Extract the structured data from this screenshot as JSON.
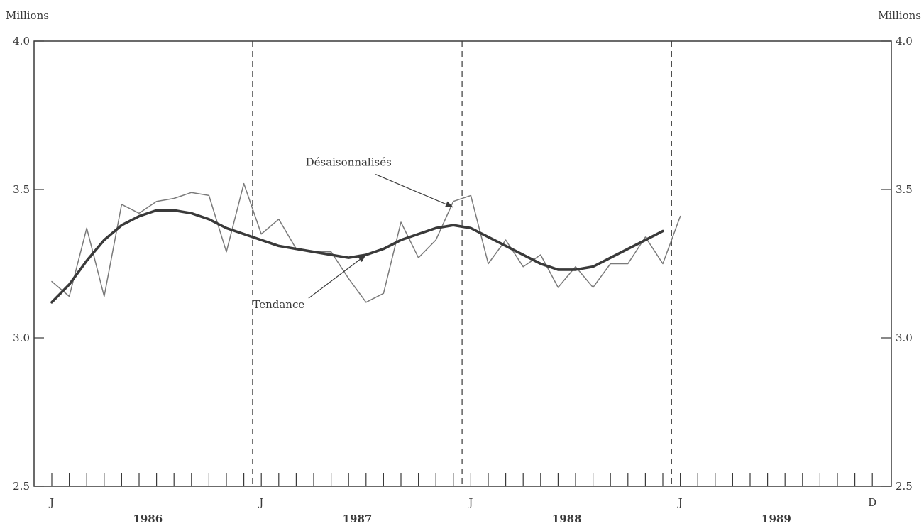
{
  "chart_data": {
    "type": "line",
    "title": "",
    "xlabel": "",
    "ylabel": "",
    "y_unit_left": "Millions",
    "y_unit_right": "Millions",
    "ylim": [
      2.5,
      4.0
    ],
    "yticks": [
      "2.5",
      "3.0",
      "3.5",
      "4.0"
    ],
    "x_range": [
      "1986-01",
      "1989-12"
    ],
    "month_labels": [
      {
        "month": "1986-01",
        "label": "J"
      },
      {
        "month": "1987-01",
        "label": "J"
      },
      {
        "month": "1988-01",
        "label": "J"
      },
      {
        "month": "1989-01",
        "label": "J"
      },
      {
        "month": "1989-12",
        "label": "D"
      }
    ],
    "year_labels": [
      {
        "year": "1986",
        "label": "1986"
      },
      {
        "year": "1987",
        "label": "1987"
      },
      {
        "year": "1988",
        "label": "1988"
      },
      {
        "year": "1989",
        "label": "1989"
      }
    ],
    "year_dividers": [
      "1987-01",
      "1988-01",
      "1989-01"
    ],
    "grid": false,
    "series": [
      {
        "name": "Désaisonnalisés",
        "style": "thin",
        "color": "#7a7a7a",
        "start": "1986-01",
        "values": [
          3.19,
          3.14,
          3.37,
          3.14,
          3.45,
          3.42,
          3.46,
          3.47,
          3.49,
          3.48,
          3.29,
          3.52,
          3.35,
          3.4,
          3.3,
          3.29,
          3.29,
          3.2,
          3.12,
          3.15,
          3.39,
          3.27,
          3.33,
          3.46,
          3.48,
          3.25,
          3.33,
          3.24,
          3.28,
          3.17,
          3.24,
          3.17,
          3.25,
          3.25,
          3.34,
          3.25,
          3.41
        ]
      },
      {
        "name": "Tendance",
        "style": "thick",
        "color": "#3a3a3a",
        "start": "1986-01",
        "values": [
          3.12,
          3.18,
          3.26,
          3.33,
          3.38,
          3.41,
          3.43,
          3.43,
          3.42,
          3.4,
          3.37,
          3.35,
          3.33,
          3.31,
          3.3,
          3.29,
          3.28,
          3.27,
          3.28,
          3.3,
          3.33,
          3.35,
          3.37,
          3.38,
          3.37,
          3.34,
          3.31,
          3.28,
          3.25,
          3.23,
          3.23,
          3.24,
          3.27,
          3.3,
          3.33,
          3.36
        ]
      }
    ],
    "annotations": [
      {
        "text": "Désaisonnalisés",
        "series": "Désaisonnalisés",
        "text_at": [
          "1987-06",
          3.58
        ],
        "arrow_to": [
          "1987-12",
          3.44
        ]
      },
      {
        "text": "Tendance",
        "series": "Tendance",
        "text_at": [
          "1987-02",
          3.1
        ],
        "arrow_to": [
          "1987-07",
          3.28
        ]
      }
    ]
  }
}
